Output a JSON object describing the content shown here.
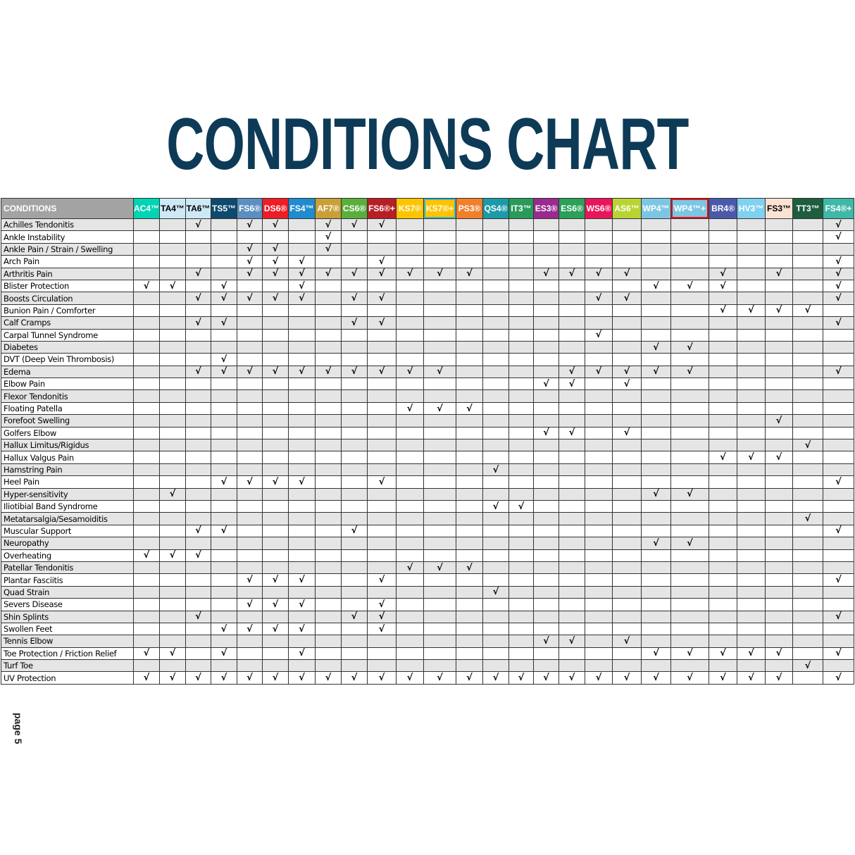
{
  "title": "CONDITIONS CHART",
  "page_label": "page 5",
  "check_symbol": "√",
  "condition_header": "CONDITIONS",
  "products": [
    {
      "label": "AC4™",
      "bg": "#00d4b4",
      "fg": "#ffffff"
    },
    {
      "label": "TA4™",
      "bg": "#cde9f6",
      "fg": "#000000"
    },
    {
      "label": "TA6™",
      "bg": "#cde9f6",
      "fg": "#000000"
    },
    {
      "label": "TS5™",
      "bg": "#0d4a6e",
      "fg": "#ffffff"
    },
    {
      "label": "FS6®",
      "bg": "#5b8fbf",
      "fg": "#ffffff"
    },
    {
      "label": "DS6®",
      "bg": "#ee1c25",
      "fg": "#ffffff"
    },
    {
      "label": "FS4™",
      "bg": "#1f8ccf",
      "fg": "#ffffff"
    },
    {
      "label": "AF7®",
      "bg": "#c9a038",
      "fg": "#ffffff"
    },
    {
      "label": "CS6®",
      "bg": "#5aaf3c",
      "fg": "#ffffff"
    },
    {
      "label": "FS6®+",
      "bg": "#b81e25",
      "fg": "#ffffff"
    },
    {
      "label": "KS7®",
      "bg": "#ffc400",
      "fg": "#ffffff"
    },
    {
      "label": "KS7®+",
      "bg": "#ffc400",
      "fg": "#ffffff",
      "outline": "#3fb8c0"
    },
    {
      "label": "PS3®",
      "bg": "#f0802a",
      "fg": "#ffffff"
    },
    {
      "label": "QS4®",
      "bg": "#1b9aa8",
      "fg": "#ffffff"
    },
    {
      "label": "IT3™",
      "bg": "#2a9a5a",
      "fg": "#ffffff"
    },
    {
      "label": "ES3®",
      "bg": "#9a2a8f",
      "fg": "#ffffff"
    },
    {
      "label": "ES6®",
      "bg": "#2aa058",
      "fg": "#ffffff"
    },
    {
      "label": "WS6®",
      "bg": "#e8165a",
      "fg": "#ffffff"
    },
    {
      "label": "AS6™",
      "bg": "#b8d432",
      "fg": "#ffffff"
    },
    {
      "label": "WP4™",
      "bg": "#7cc6e4",
      "fg": "#ffffff"
    },
    {
      "label": "WP4™+",
      "bg": "#7cc6e4",
      "fg": "#ffffff",
      "outline": "#e81010"
    },
    {
      "label": "BR4®",
      "bg": "#4a5aa8",
      "fg": "#ffffff"
    },
    {
      "label": "HV3™",
      "bg": "#80d0f0",
      "fg": "#ffffff"
    },
    {
      "label": "FS3™",
      "bg": "#fbe2d2",
      "fg": "#000000"
    },
    {
      "label": "TT3™",
      "bg": "#1e5e3e",
      "fg": "#ffffff"
    },
    {
      "label": "FS4®+",
      "bg": "#3fb8a8",
      "fg": "#ffffff"
    }
  ],
  "conditions": [
    {
      "name": "Achilles Tendonitis",
      "checks": [
        2,
        4,
        5,
        7,
        8,
        9,
        25
      ]
    },
    {
      "name": "Ankle Instability",
      "checks": [
        7,
        25
      ]
    },
    {
      "name": "Ankle Pain / Strain / Swelling",
      "checks": [
        4,
        5,
        7
      ]
    },
    {
      "name": "Arch Pain",
      "checks": [
        4,
        5,
        6,
        9,
        25
      ]
    },
    {
      "name": "Arthritis Pain",
      "checks": [
        2,
        4,
        5,
        6,
        7,
        8,
        9,
        10,
        11,
        12,
        15,
        16,
        17,
        18,
        21,
        23,
        25
      ]
    },
    {
      "name": "Blister Protection",
      "checks": [
        0,
        1,
        3,
        6,
        19,
        20,
        21,
        25
      ]
    },
    {
      "name": "Boosts Circulation",
      "checks": [
        2,
        3,
        4,
        5,
        6,
        8,
        9,
        17,
        18,
        25
      ]
    },
    {
      "name": "Bunion Pain / Comforter",
      "checks": [
        21,
        22,
        23,
        24
      ]
    },
    {
      "name": "Calf Cramps",
      "checks": [
        2,
        3,
        8,
        9,
        25
      ]
    },
    {
      "name": "Carpal Tunnel Syndrome",
      "checks": [
        17
      ]
    },
    {
      "name": "Diabetes",
      "checks": [
        19,
        20
      ]
    },
    {
      "name": "DVT (Deep Vein Thrombosis)",
      "checks": [
        3
      ]
    },
    {
      "name": "Edema",
      "checks": [
        2,
        3,
        4,
        5,
        6,
        7,
        8,
        9,
        10,
        11,
        16,
        17,
        18,
        19,
        20,
        25
      ]
    },
    {
      "name": "Elbow Pain",
      "checks": [
        15,
        16,
        18
      ]
    },
    {
      "name": "Flexor Tendonitis",
      "checks": []
    },
    {
      "name": "Floating Patella",
      "checks": [
        10,
        11,
        12
      ]
    },
    {
      "name": "Forefoot Swelling",
      "checks": [
        23
      ]
    },
    {
      "name": "Golfers Elbow",
      "checks": [
        15,
        16,
        18
      ]
    },
    {
      "name": "Hallux Limitus/Rigidus",
      "checks": [
        24
      ]
    },
    {
      "name": "Hallux Valgus Pain",
      "checks": [
        21,
        22,
        23
      ]
    },
    {
      "name": "Hamstring Pain",
      "checks": [
        13
      ]
    },
    {
      "name": "Heel Pain",
      "checks": [
        3,
        4,
        5,
        6,
        9,
        25
      ]
    },
    {
      "name": "Hyper-sensitivity",
      "checks": [
        1,
        19,
        20
      ]
    },
    {
      "name": "Iliotibial Band Syndrome",
      "checks": [
        13,
        14
      ]
    },
    {
      "name": "Metatarsalgia/Sesamoiditis",
      "checks": [
        24
      ]
    },
    {
      "name": "Muscular Support",
      "checks": [
        2,
        3,
        8,
        25
      ]
    },
    {
      "name": "Neuropathy",
      "checks": [
        19,
        20
      ]
    },
    {
      "name": "Overheating",
      "checks": [
        0,
        1,
        2
      ]
    },
    {
      "name": "Patellar Tendonitis",
      "checks": [
        10,
        11,
        12
      ]
    },
    {
      "name": "Plantar Fasciitis",
      "checks": [
        4,
        5,
        6,
        9,
        25
      ]
    },
    {
      "name": "Quad Strain",
      "checks": [
        13
      ]
    },
    {
      "name": "Severs Disease",
      "checks": [
        4,
        5,
        6,
        9
      ]
    },
    {
      "name": "Shin Splints",
      "checks": [
        2,
        8,
        9,
        25
      ]
    },
    {
      "name": "Swollen Feet",
      "checks": [
        3,
        4,
        5,
        6,
        9
      ]
    },
    {
      "name": "Tennis Elbow",
      "checks": [
        15,
        16,
        18
      ]
    },
    {
      "name": "Toe Protection / Friction Relief",
      "checks": [
        0,
        1,
        3,
        6,
        19,
        20,
        21,
        22,
        23,
        25
      ]
    },
    {
      "name": "Turf Toe",
      "checks": [
        24
      ]
    },
    {
      "name": "UV Protection",
      "checks": [
        0,
        1,
        2,
        3,
        4,
        5,
        6,
        7,
        8,
        9,
        10,
        11,
        12,
        13,
        14,
        15,
        16,
        17,
        18,
        19,
        20,
        21,
        22,
        23,
        25
      ]
    }
  ]
}
